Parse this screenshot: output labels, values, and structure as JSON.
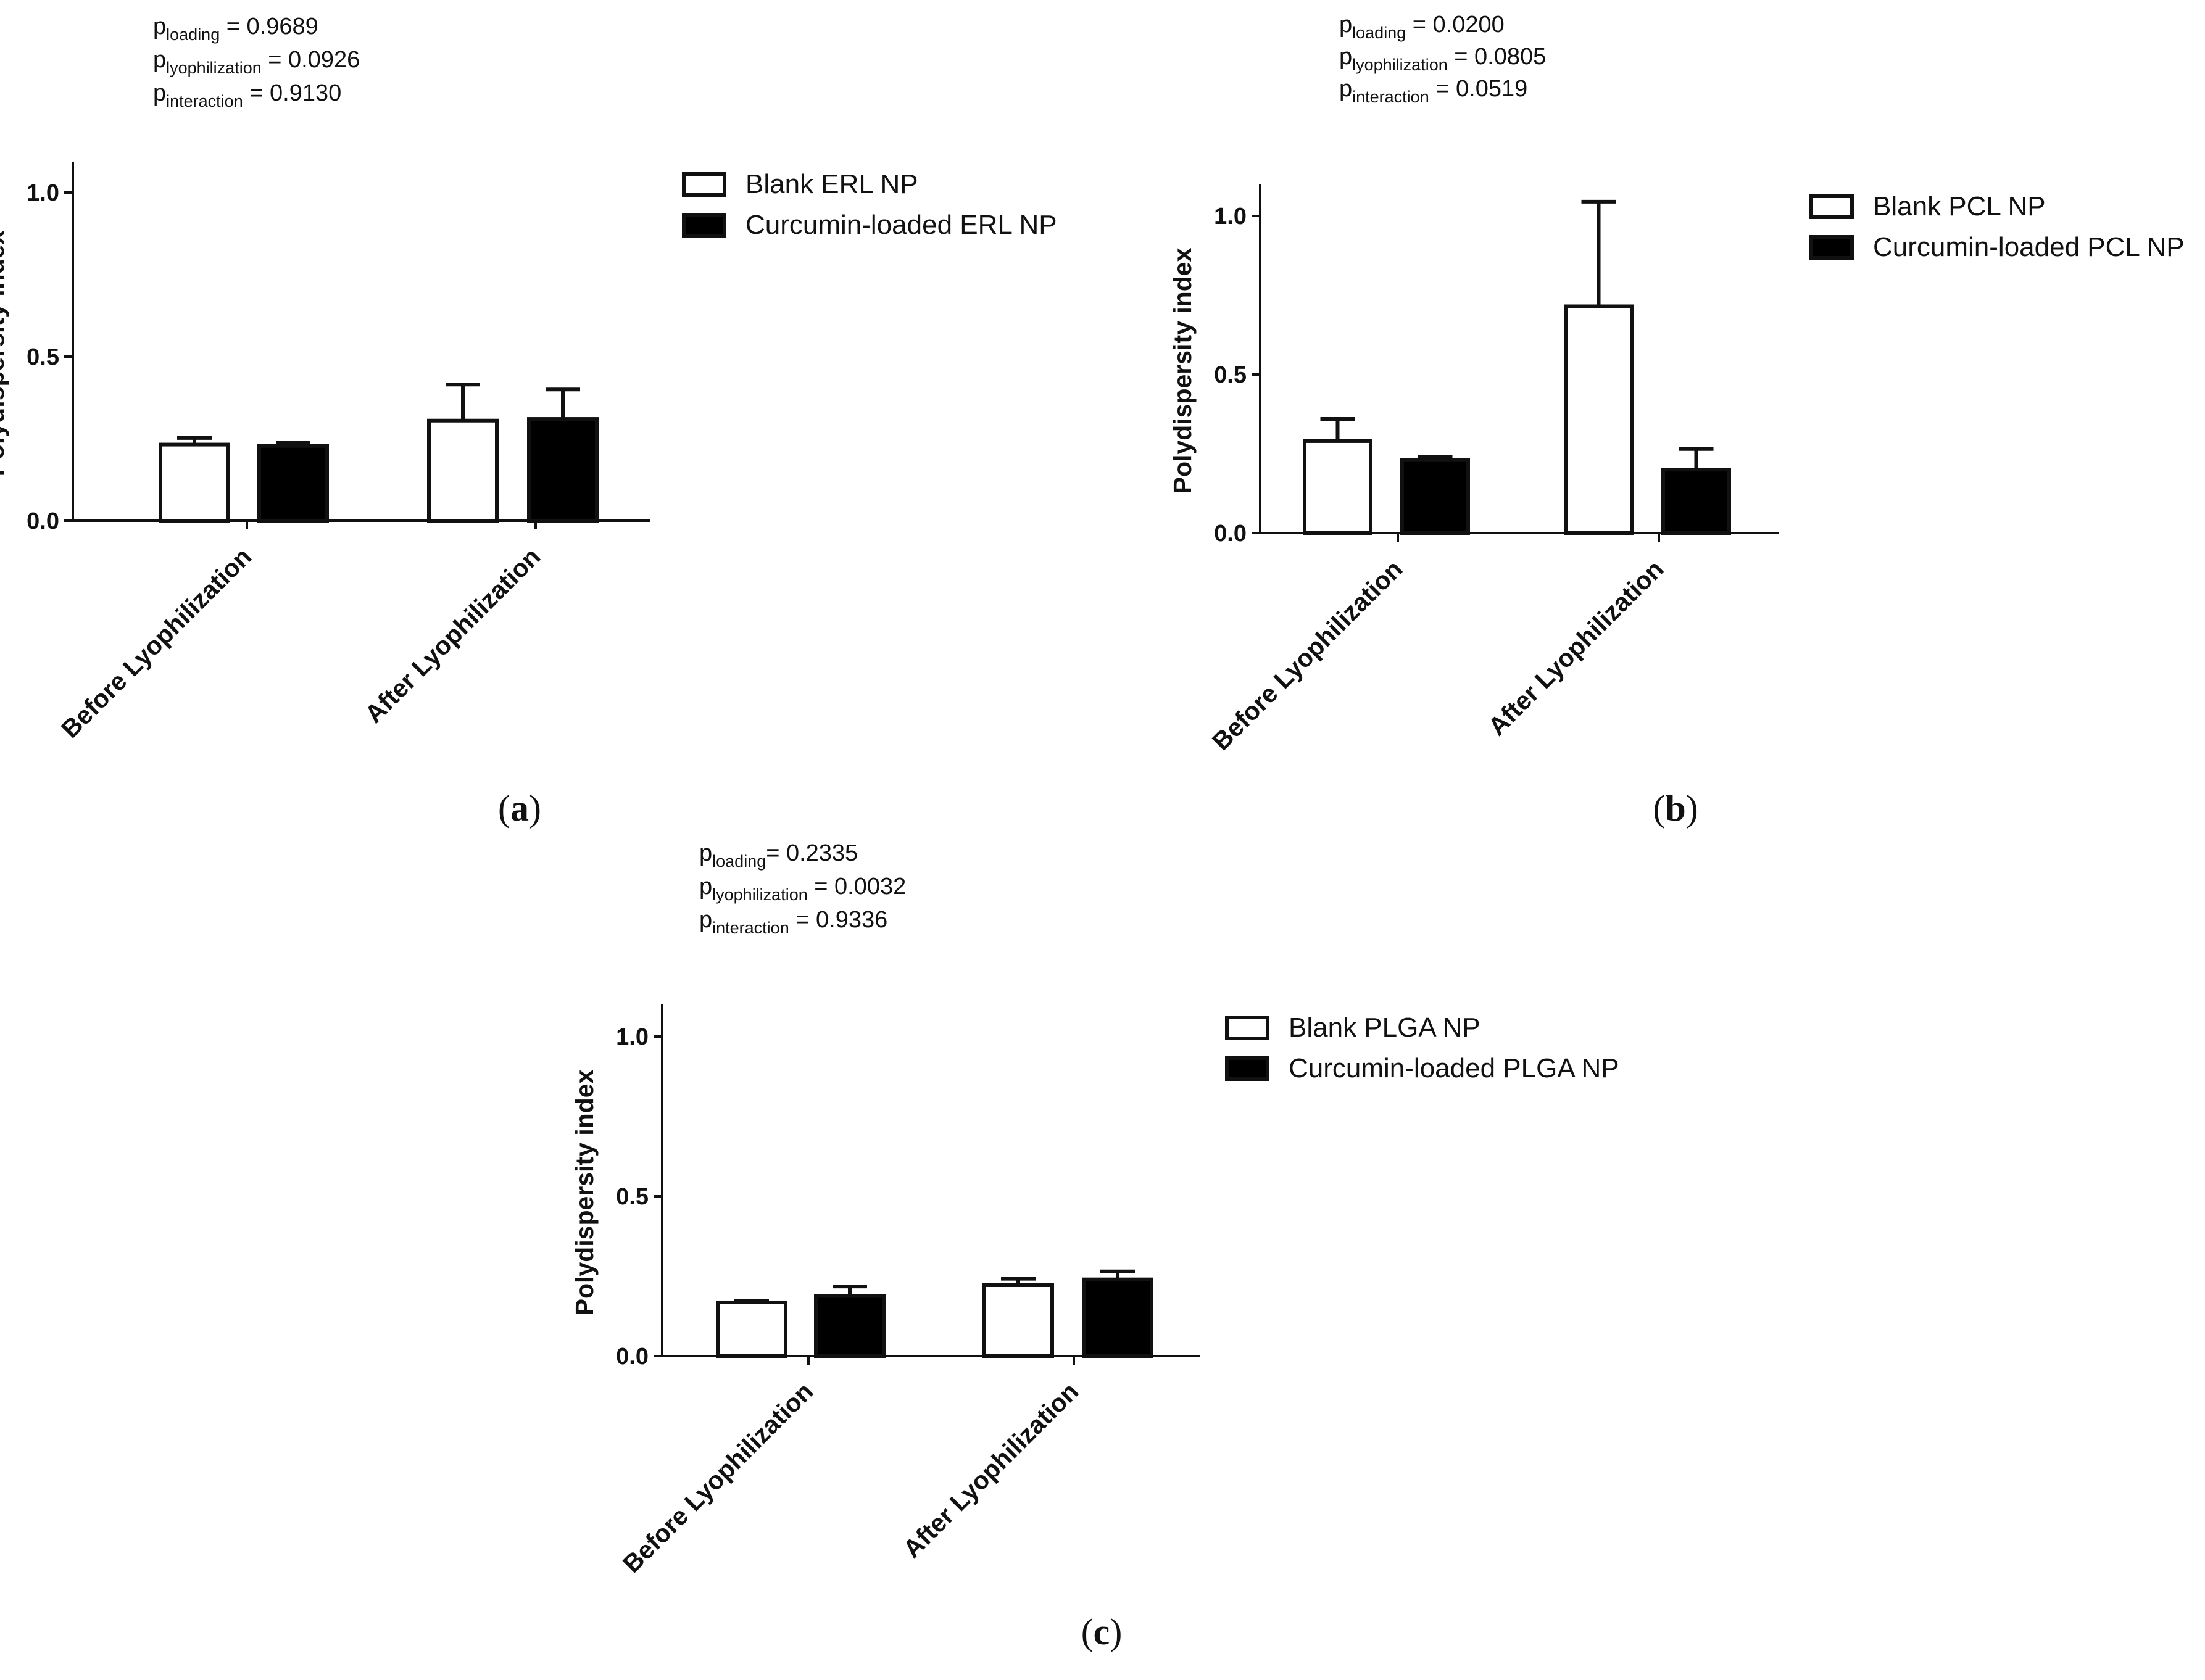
{
  "colors": {
    "axis": "#111111",
    "blank_fill": "#ffffff",
    "loaded_fill": "#000000"
  },
  "chart_data": [
    {
      "panel": "a",
      "panel_label": {
        "open": "(",
        "letter": "a",
        "close": ")"
      },
      "type": "bar",
      "ylabel": "Polydispersity index",
      "ylim": [
        0,
        1.0
      ],
      "yticks": [
        "0.0",
        "0.5",
        "1.0"
      ],
      "categories": [
        "Before Lyophilization",
        "After Lyophilization"
      ],
      "series": [
        {
          "name": "Blank ERL NP",
          "fill": "#ffffff",
          "values": [
            0.232,
            0.305
          ],
          "errors": [
            0.02,
            0.11
          ]
        },
        {
          "name": "Curcumin-loaded ERL NP",
          "fill": "#000000",
          "values": [
            0.228,
            0.31
          ],
          "errors": [
            0.01,
            0.09
          ]
        }
      ],
      "stats": [
        {
          "base": "p",
          "sub": "loading",
          "rest": " = 0.9689"
        },
        {
          "base": "p",
          "sub": "lyophilization",
          "rest": " = 0.0926"
        },
        {
          "base": "p",
          "sub": "interaction",
          "rest": " = 0.9130"
        }
      ]
    },
    {
      "panel": "b",
      "panel_label": {
        "open": "(",
        "letter": "b",
        "close": ")"
      },
      "type": "bar",
      "ylabel": "Polydispersity index",
      "ylim": [
        0,
        1.0
      ],
      "yticks": [
        "0.0",
        "0.5",
        "1.0"
      ],
      "categories": [
        "Before Lyophilization",
        "After Lyophilization"
      ],
      "series": [
        {
          "name": "Blank PCL NP",
          "fill": "#ffffff",
          "values": [
            0.29,
            0.715
          ],
          "errors": [
            0.07,
            0.33
          ]
        },
        {
          "name": "Curcumin-loaded PCL NP",
          "fill": "#000000",
          "values": [
            0.23,
            0.2
          ],
          "errors": [
            0.01,
            0.065
          ]
        }
      ],
      "stats": [
        {
          "base": "p",
          "sub": "loading",
          "rest": " = 0.0200"
        },
        {
          "base": "p",
          "sub": "lyophilization",
          "rest": " = 0.0805"
        },
        {
          "base": "p",
          "sub": "interaction",
          "rest": " = 0.0519"
        }
      ]
    },
    {
      "panel": "c",
      "panel_label": {
        "open": "(",
        "letter": "c",
        "close": ")"
      },
      "type": "bar",
      "ylabel": "Polydispersity index",
      "ylim": [
        0,
        1.0
      ],
      "yticks": [
        "0.0",
        "0.5",
        "1.0"
      ],
      "categories": [
        "Before Lyophilization",
        "After Lyophilization"
      ],
      "series": [
        {
          "name": "Blank PLGA NP",
          "fill": "#ffffff",
          "values": [
            0.168,
            0.222
          ],
          "errors": [
            0.005,
            0.02
          ]
        },
        {
          "name": "Curcumin-loaded PLGA NP",
          "fill": "#000000",
          "values": [
            0.188,
            0.24
          ],
          "errors": [
            0.03,
            0.025
          ]
        }
      ],
      "stats": [
        {
          "base": "p",
          "sub": "loading",
          "rest": "= 0.2335"
        },
        {
          "base": "p",
          "sub": "lyophilization",
          "rest": " = 0.0032"
        },
        {
          "base": "p",
          "sub": "interaction",
          "rest": " = 0.9336"
        }
      ]
    }
  ]
}
